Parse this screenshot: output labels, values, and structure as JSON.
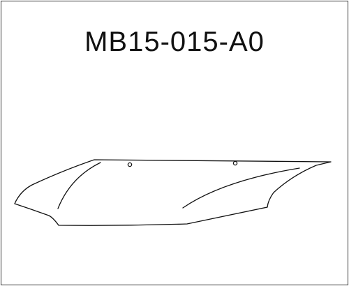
{
  "part_code": "MB15-015-A0",
  "drawing": {
    "subject": "hood-deflector-outline",
    "line_color": "#111111",
    "background_color": "#ffffff",
    "border_color": "#333333"
  }
}
